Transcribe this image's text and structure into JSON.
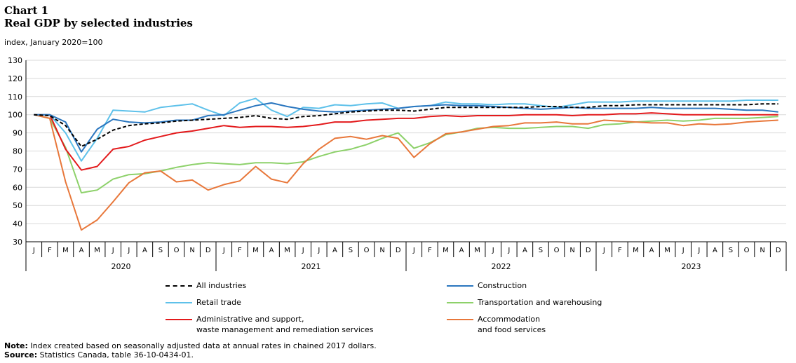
{
  "chart_data": {
    "type": "line",
    "chart_label": "Chart 1",
    "title": "Real GDP by selected industries",
    "ylabel": "index, January 2020=100",
    "ylim": [
      30,
      130
    ],
    "yticks": [
      30,
      40,
      50,
      60,
      70,
      80,
      90,
      100,
      110,
      120,
      130
    ],
    "grid": true,
    "month_labels": [
      "J",
      "F",
      "M",
      "A",
      "M",
      "J",
      "J",
      "A",
      "S",
      "O",
      "N",
      "D"
    ],
    "years": [
      "2020",
      "2021",
      "2022",
      "2023"
    ],
    "series": [
      {
        "name": "All industries",
        "color": "#000000",
        "dashed": true,
        "values": [
          100,
          99.5,
          94,
          82.5,
          86.5,
          91.5,
          94,
          95,
          95.5,
          96.5,
          97,
          97.5,
          98,
          98.5,
          99.5,
          98,
          97.5,
          99,
          99.5,
          100.5,
          101.5,
          102,
          102.5,
          102.5,
          102,
          103,
          104,
          104,
          104,
          104,
          104,
          104,
          104.5,
          104.5,
          104,
          104,
          105,
          105,
          105.5,
          105.5,
          105.5,
          105.5,
          105.5,
          105.5,
          105.5,
          105.5,
          106,
          106
        ]
      },
      {
        "name": "Construction",
        "color": "#2A76BF",
        "dashed": false,
        "values": [
          100,
          100,
          96,
          79.5,
          92,
          97.5,
          96,
          95.5,
          96,
          97,
          97,
          99.5,
          100,
          102.5,
          105,
          106.5,
          104.5,
          103,
          102,
          101.5,
          102,
          102.5,
          103,
          103.5,
          104.5,
          105,
          105.5,
          105,
          105,
          104.5,
          104,
          103.5,
          103,
          103.5,
          104,
          103.5,
          103.5,
          103.5,
          103.5,
          104,
          103.5,
          103.5,
          103.5,
          103.5,
          103,
          102.5,
          102.5,
          101.5
        ]
      },
      {
        "name": "Retail trade",
        "color": "#5EC1EA",
        "dashed": false,
        "values": [
          100,
          100,
          90,
          74.5,
          87,
          102.5,
          102,
          101.5,
          104,
          105,
          106,
          102.5,
          99.5,
          106.5,
          109,
          102.5,
          99,
          104,
          103.5,
          105.5,
          105,
          106,
          106.5,
          103.5,
          104.5,
          105,
          107,
          106,
          106,
          105.5,
          106,
          106,
          105,
          104,
          105.5,
          107,
          107,
          107,
          107.5,
          107.5,
          107.5,
          107.5,
          107.5,
          107.5,
          107.5,
          108,
          108,
          108
        ]
      },
      {
        "name": "Transportation and warehousing",
        "color": "#8DD16A",
        "dashed": false,
        "values": [
          100,
          98,
          82,
          57,
          58.5,
          64.5,
          67,
          67.5,
          69,
          71,
          72.5,
          73.5,
          73,
          72.5,
          73.5,
          73.5,
          73,
          74,
          77,
          79.5,
          81,
          83.5,
          87,
          90,
          81.5,
          84.5,
          89,
          90.5,
          92.5,
          93,
          92.5,
          92.5,
          93,
          93.5,
          93.5,
          92.5,
          94.5,
          95,
          96,
          96.5,
          97,
          96.5,
          97,
          98,
          98,
          98,
          98.5,
          99
        ]
      },
      {
        "name": "Administrative and support,\nwaste management and remediation services",
        "color": "#E31A1C",
        "dashed": false,
        "values": [
          100,
          100,
          81,
          69.5,
          71.5,
          81,
          82.5,
          86,
          88,
          90,
          91,
          92.5,
          94,
          93,
          93.5,
          93.5,
          93,
          93.5,
          94.5,
          96,
          96,
          97,
          97.5,
          98,
          98,
          99,
          99.5,
          99,
          99.5,
          99.5,
          99.5,
          100,
          100,
          100,
          99.5,
          100,
          100,
          100.5,
          100.5,
          101,
          100.5,
          100,
          100,
          100,
          100,
          100,
          100,
          100
        ]
      },
      {
        "name": "Accommodation\nand food services",
        "color": "#E8773A",
        "dashed": false,
        "values": [
          100,
          98,
          63,
          36.5,
          42,
          52,
          62.5,
          68,
          69,
          63,
          64,
          58.5,
          61.5,
          63.5,
          71.5,
          64.5,
          62.5,
          73,
          81,
          87,
          88,
          86.5,
          88.5,
          87,
          76.5,
          84,
          89.5,
          90.5,
          92,
          93.5,
          94,
          95.5,
          95.5,
          96,
          95,
          95,
          97,
          96.5,
          96,
          95.5,
          95.5,
          94,
          95,
          94.5,
          95,
          96,
          96.5,
          97
        ]
      }
    ]
  },
  "notes": {
    "note_label": "Note:",
    "note_text": " Index created based on seasonally adjusted data at annual rates in chained 2017 dollars.",
    "source_label": "Source:",
    "source_text": " Statistics Canada, table 36-10-0434-01."
  }
}
